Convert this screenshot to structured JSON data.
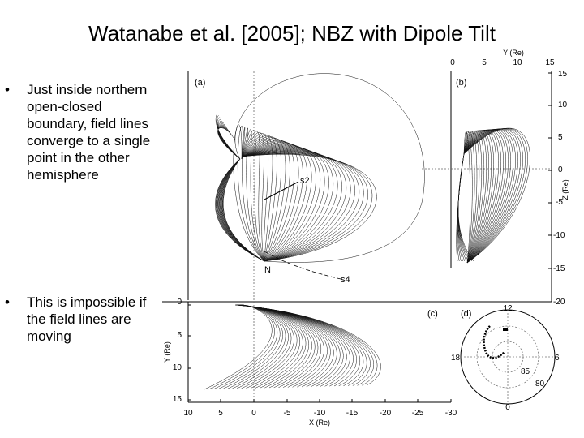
{
  "slide": {
    "title": "Watanabe et al. [2005]; NBZ with Dipole Tilt",
    "bullets": [
      {
        "marker": "•",
        "text": "Just inside northern open-closed boundary, field lines converge to a single point in the other hemisphere"
      },
      {
        "marker": "•",
        "text": "This is impossible if the field lines are moving"
      }
    ]
  },
  "figure": {
    "panel_a_label": "(a)",
    "panel_b_label": "(b)",
    "panel_c_label": "(c)",
    "panel_d_label": "(d)",
    "point_s2": "s2",
    "point_s4": "s4",
    "point_n": "N",
    "axis_y_top": {
      "label": "Y (Re)",
      "ticks": [
        "0",
        "5",
        "10",
        "15"
      ]
    },
    "axis_z_right": {
      "label": "Z (Re)",
      "ticks": [
        "15",
        "10",
        "5",
        "0",
        "-5",
        "-10",
        "-15",
        "-20"
      ]
    },
    "axis_y_left": {
      "label": "Y (Re)",
      "ticks": [
        "0",
        "5",
        "10",
        "15"
      ]
    },
    "axis_x_bottom": {
      "label": "X (Re)",
      "ticks": [
        "10",
        "5",
        "0",
        "-5",
        "-10",
        "-15",
        "-20",
        "-25",
        "-30"
      ]
    },
    "dial": {
      "top": "12",
      "left": "18",
      "right": "6",
      "bottom": "0",
      "ring1": "85",
      "ring2": "80"
    }
  }
}
